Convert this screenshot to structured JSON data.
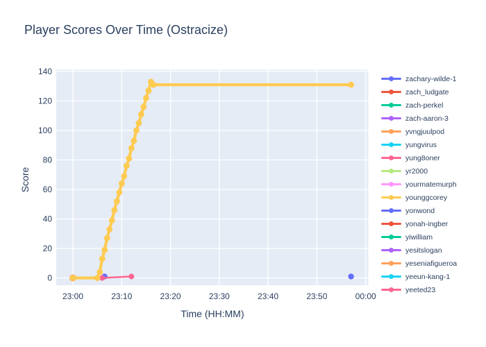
{
  "title": "Player Scores Over Time (Ostracize)",
  "chart_data": {
    "type": "line",
    "title": "Player Scores Over Time (Ostracize)",
    "xlabel": "Time (HH:MM)",
    "ylabel": "Score",
    "x_tick_labels": [
      "23:00",
      "23:10",
      "23:20",
      "23:30",
      "23:40",
      "23:50",
      "00:00"
    ],
    "y_ticks": [
      0,
      20,
      40,
      60,
      80,
      100,
      120,
      140
    ],
    "ylim": [
      -5,
      141
    ],
    "grid": true,
    "legend_position": "right",
    "colors": {
      "paper_bg": "#ffffff",
      "plot_bg": "#e5ecf6",
      "grid": "#ffffff",
      "text": "#2a3f5f"
    },
    "series": [
      {
        "name": "zachary-wilde-1",
        "color": "#636efa",
        "line_width": 2.5,
        "marker_size": 4.2,
        "points": [
          [
            "23:06:30",
            1
          ]
        ]
      },
      {
        "name": "zach_ludgate",
        "color": "#ef553b",
        "line_width": 2.5,
        "marker_size": 4,
        "points": []
      },
      {
        "name": "zach-perkel",
        "color": "#00cc96",
        "line_width": 2.5,
        "marker_size": 4,
        "points": []
      },
      {
        "name": "zach-aaron-3",
        "color": "#ab63fa",
        "line_width": 2.5,
        "marker_size": 4,
        "points": []
      },
      {
        "name": "yvngjuulpod",
        "color": "#ffa15a",
        "line_width": 2.5,
        "marker_size": 5,
        "points": [
          [
            "23:00",
            0
          ]
        ]
      },
      {
        "name": "yungvirus",
        "color": "#19d3f3",
        "line_width": 2.5,
        "marker_size": 4,
        "points": []
      },
      {
        "name": "yung8oner",
        "color": "#ff6692",
        "line_width": 2.5,
        "marker_size": 4,
        "points": [
          [
            "23:06",
            0
          ],
          [
            "23:12",
            1
          ]
        ]
      },
      {
        "name": "yr2000",
        "color": "#b6e880",
        "line_width": 2.5,
        "marker_size": 4,
        "points": []
      },
      {
        "name": "yourmatemurph",
        "color": "#ff97ff",
        "line_width": 2.5,
        "marker_size": 4,
        "points": []
      },
      {
        "name": "younggcorey",
        "color": "#fecb52",
        "line_width": 4.2,
        "marker_size": 4.4,
        "points": [
          [
            "23:00",
            0
          ],
          [
            "23:05",
            0
          ],
          [
            "23:05:30",
            4
          ],
          [
            "23:06",
            13
          ],
          [
            "23:06:30",
            19
          ],
          [
            "23:07",
            27
          ],
          [
            "23:07:30",
            33
          ],
          [
            "23:08",
            39
          ],
          [
            "23:08:30",
            46
          ],
          [
            "23:09",
            52
          ],
          [
            "23:09:30",
            58
          ],
          [
            "23:10",
            64
          ],
          [
            "23:10:30",
            69
          ],
          [
            "23:11",
            76
          ],
          [
            "23:11:30",
            81
          ],
          [
            "23:12",
            88
          ],
          [
            "23:12:30",
            93
          ],
          [
            "23:13",
            100
          ],
          [
            "23:13:30",
            105
          ],
          [
            "23:14",
            111
          ],
          [
            "23:14:30",
            116
          ],
          [
            "23:15",
            122
          ],
          [
            "23:15:30",
            127
          ],
          [
            "23:16",
            133
          ],
          [
            "23:16:30",
            131
          ],
          [
            "23:57",
            131
          ]
        ]
      },
      {
        "name": "yonwond",
        "color": "#636efa",
        "line_width": 2.5,
        "marker_size": 4.2,
        "points": [
          [
            "23:57",
            1
          ]
        ]
      },
      {
        "name": "yonah-ingber",
        "color": "#ef553b",
        "line_width": 2.5,
        "marker_size": 4,
        "points": []
      },
      {
        "name": "yiwilliam",
        "color": "#00cc96",
        "line_width": 2.5,
        "marker_size": 4,
        "points": []
      },
      {
        "name": "yesitslogan",
        "color": "#ab63fa",
        "line_width": 2.5,
        "marker_size": 4,
        "points": []
      },
      {
        "name": "yeseniafigueroa",
        "color": "#ffa15a",
        "line_width": 2.5,
        "marker_size": 4,
        "points": []
      },
      {
        "name": "yeeun-kang-1",
        "color": "#19d3f3",
        "line_width": 2.5,
        "marker_size": 4,
        "points": []
      },
      {
        "name": "yeeted23",
        "color": "#ff6692",
        "line_width": 2.5,
        "marker_size": 4,
        "points": []
      }
    ]
  }
}
